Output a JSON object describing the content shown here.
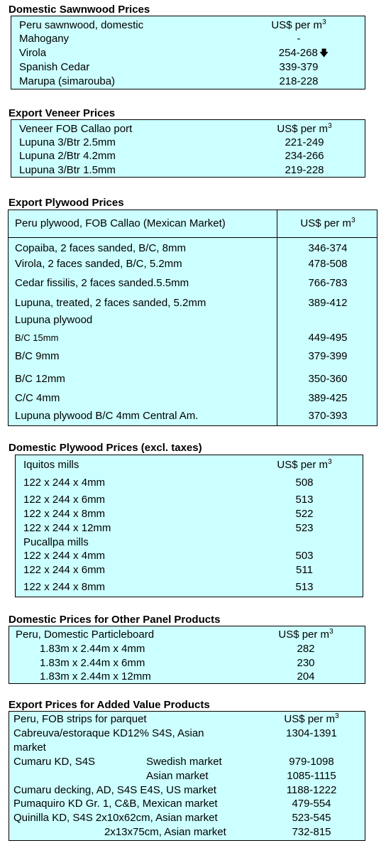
{
  "unit_prefix": "US$ per m",
  "unit_exp": "3",
  "sawnwood": {
    "title": "Domestic Sawnwood Prices",
    "header": "Peru sawnwood, domestic",
    "rows": [
      {
        "name": "Mahogany",
        "value": "-"
      },
      {
        "name": "Virola",
        "value": "254-268"
      },
      {
        "name": "Spanish Cedar",
        "value": "339-379"
      },
      {
        "name": "Marupa (simarouba)",
        "value": "218-228"
      }
    ],
    "arrow_icon": "down-arrow-icon"
  },
  "veneer": {
    "title": "Export Veneer Prices",
    "header": "Veneer  FOB Callao port",
    "rows": [
      {
        "name": "Lupuna 3/Btr 2.5mm",
        "value": "221-249"
      },
      {
        "name": "Lupuna 2/Btr 4.2mm",
        "value": "234-266"
      },
      {
        "name": "Lupuna 3/Btr 1.5mm",
        "value": "219-228"
      }
    ]
  },
  "export_plywood": {
    "title": "Export Plywood Prices",
    "header": "Peru plywood, FOB Callao (Mexican Market)",
    "rows": [
      {
        "name": "Copaiba, 2 faces sanded, B/C, 8mm",
        "value": "346-374"
      },
      {
        "name": "Virola, 2 faces sanded, B/C, 5.2mm",
        "value": "478-508"
      },
      {
        "name": "Cedar fissilis, 2 faces sanded.5.5mm",
        "value": "766-783"
      },
      {
        "name": "Lupuna, treated, 2 faces sanded, 5.2mm",
        "value": "389-412"
      },
      {
        "name": "Lupuna plywood",
        "value": ""
      },
      {
        "name": "B/C 15mm",
        "value": "449-495"
      },
      {
        "name": "B/C 9mm",
        "value": "379-399"
      },
      {
        "name": "B/C 12mm",
        "value": "350-360"
      },
      {
        "name": "C/C 4mm",
        "value": "389-425"
      },
      {
        "name": "Lupuna plywood B/C 4mm Central Am.",
        "value": "370-393"
      }
    ]
  },
  "domestic_plywood": {
    "title": "Domestic Plywood Prices (excl. taxes)",
    "header": "Iquitos mills",
    "rows": [
      {
        "name": "122 x 244 x 4mm",
        "value": "508"
      },
      {
        "name": "122 x 244 x 6mm",
        "value": "513"
      },
      {
        "name": "122 x 244 x 8mm",
        "value": "522"
      },
      {
        "name": "122 x 244 x 12mm",
        "value": "523"
      },
      {
        "name": "Pucallpa mills",
        "value": ""
      },
      {
        "name": "122 x 244 x 4mm",
        "value": "503"
      },
      {
        "name": "122 x 244 x 6mm",
        "value": "511"
      },
      {
        "name": "122 x 244 x 8mm",
        "value": "513"
      }
    ]
  },
  "panels": {
    "title": "Domestic Prices for Other Panel Products",
    "header": "Peru, Domestic Particleboard",
    "rows": [
      {
        "name": "1.83m x 2.44m x 4mm",
        "value": "282"
      },
      {
        "name": "1.83m x 2.44m x 6mm",
        "value": "230"
      },
      {
        "name": "1.83m x 2.44m x 12mm",
        "value": "204"
      }
    ]
  },
  "added_value": {
    "title": "Export Prices for Added Value Products",
    "header": "Peru, FOB strips for parquet",
    "r1_name": "Cabreuva/estoraque KD12% S4S, Asian",
    "r1_name2": "market",
    "r1_value": "1304-1391",
    "r2_name": "Cumaru KD, S4S",
    "r2_sub": "Swedish market",
    "r2_value": "979-1098",
    "r3_sub": "Asian market",
    "r3_value": "1085-1115",
    "r4_name": "Cumaru decking, AD, S4S E4S,  US market",
    "r4_value": "1188-1222",
    "r5_name": "Pumaquiro KD Gr. 1, C&B,  Mexican market",
    "r5_value": "479-554",
    "r6_name": "Quinilla KD, S4S 2x10x62cm,  Asian market",
    "r6_value": "523-545",
    "r7_sub": "2x13x75cm, Asian market",
    "r7_value": "732-815"
  }
}
